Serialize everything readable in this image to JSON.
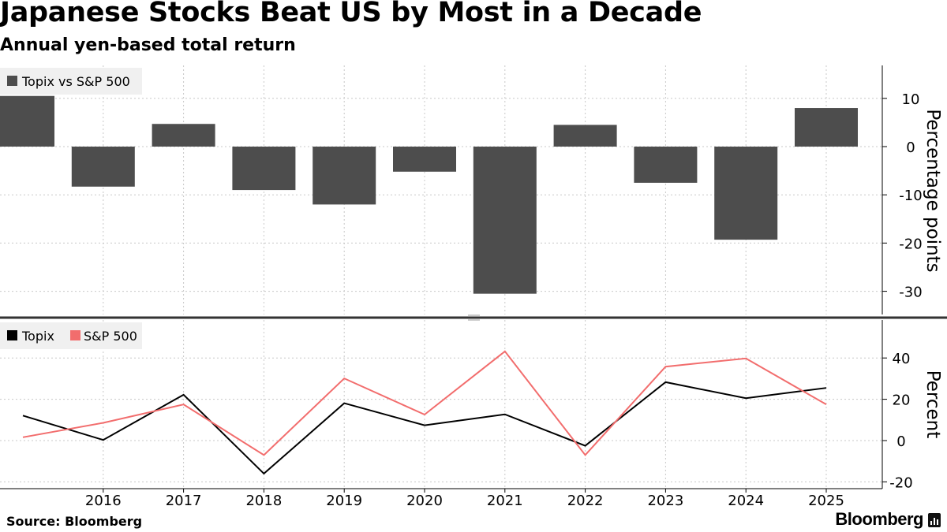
{
  "title": "Japanese Stocks Beat US by Most in a Decade",
  "subtitle": "Annual yen-based total return",
  "source": "Source: Bloomberg",
  "brand": "Bloomberg",
  "colors": {
    "bar": "#4d4d4d",
    "topix": "#000000",
    "sp500": "#f26d6d",
    "grid": "#c8c8c8",
    "divider": "#333333"
  },
  "chart_data": [
    {
      "type": "bar",
      "legend": [
        "Topix vs S&P 500"
      ],
      "legend_position": "top-left",
      "ylabel": "Percentage points",
      "ylim": [
        -35,
        17
      ],
      "yticks": [
        10,
        0,
        -10,
        -20,
        -30
      ],
      "ytick_labels": [
        "10",
        "0",
        "-10",
        "-20",
        "-30"
      ],
      "x": [
        2015,
        2016,
        2017,
        2018,
        2019,
        2020,
        2021,
        2022,
        2023,
        2024,
        2025
      ],
      "values": [
        10.5,
        -8.3,
        4.7,
        -9.0,
        -12.0,
        -5.2,
        -30.5,
        4.5,
        -7.5,
        -19.3,
        8.0
      ]
    },
    {
      "type": "line",
      "legend_position": "top-left",
      "ylabel": "Percent",
      "ylim": [
        -25,
        58
      ],
      "yticks": [
        40,
        20,
        0,
        -20
      ],
      "ytick_labels": [
        "40",
        "20",
        "0",
        "-20"
      ],
      "x": [
        2015,
        2016,
        2017,
        2018,
        2019,
        2020,
        2021,
        2022,
        2023,
        2024,
        2025
      ],
      "xtick_labels": [
        "2016",
        "2017",
        "2018",
        "2019",
        "2020",
        "2021",
        "2022",
        "2023",
        "2024",
        "2025"
      ],
      "series": [
        {
          "name": "Topix",
          "values": [
            12.1,
            0.3,
            22.2,
            -16.0,
            18.1,
            7.4,
            12.7,
            -2.5,
            28.3,
            20.5,
            25.5
          ]
        },
        {
          "name": "S&P 500",
          "values": [
            1.6,
            8.6,
            17.5,
            -7.0,
            30.1,
            12.6,
            43.2,
            -7.0,
            35.8,
            39.8,
            17.5
          ]
        }
      ]
    }
  ]
}
